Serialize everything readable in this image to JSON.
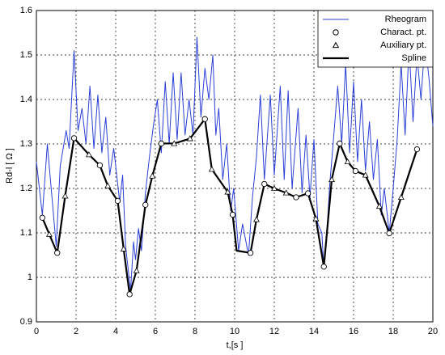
{
  "chart_data": {
    "type": "line",
    "xlabel": "t,[s ]",
    "ylabel": "Rd-l [ Ω ]",
    "xlim": [
      0,
      20
    ],
    "ylim": [
      0.9,
      1.6
    ],
    "xticks": [
      0,
      2,
      4,
      6,
      8,
      10,
      12,
      14,
      16,
      18,
      20
    ],
    "yticks": [
      0.9,
      1,
      1.1,
      1.2,
      1.3,
      1.4,
      1.5,
      1.6
    ],
    "grid": true,
    "legend": "upper right",
    "series": [
      {
        "name": "Rheogram",
        "color": "#2b3fd6",
        "marker": "line",
        "x": [
          0,
          0.3,
          0.55,
          1.0,
          1.2,
          1.5,
          1.65,
          1.9,
          2.1,
          2.3,
          2.5,
          2.7,
          2.9,
          3.1,
          3.3,
          3.5,
          3.7,
          3.9,
          4.2,
          4.35,
          4.5,
          4.75,
          4.9,
          5.0,
          5.15,
          5.3,
          5.5,
          5.7,
          5.9,
          6.1,
          6.3,
          6.5,
          6.7,
          6.9,
          7.1,
          7.3,
          7.5,
          7.7,
          7.9,
          8.1,
          8.3,
          8.5,
          8.7,
          8.9,
          9.05,
          9.2,
          9.4,
          9.6,
          9.8,
          9.95,
          10.2,
          10.4,
          10.7,
          10.9,
          11.1,
          11.3,
          11.5,
          11.8,
          12.0,
          12.3,
          12.5,
          12.7,
          12.9,
          13.2,
          13.4,
          13.6,
          13.8,
          14.0,
          14.2,
          14.4,
          14.5,
          14.65,
          14.8,
          14.95,
          15.2,
          15.4,
          15.6,
          15.8,
          16.0,
          16.2,
          16.4,
          16.6,
          16.8,
          17.0,
          17.2,
          17.4,
          17.55,
          17.8,
          18.0,
          18.2,
          18.4,
          18.6,
          18.8,
          19.0,
          19.2,
          19.4,
          19.6,
          19.8,
          20
        ],
        "values": [
          1.26,
          1.14,
          1.3,
          1.07,
          1.25,
          1.33,
          1.29,
          1.51,
          1.33,
          1.38,
          1.3,
          1.43,
          1.29,
          1.41,
          1.28,
          1.36,
          1.23,
          1.29,
          1.17,
          1.23,
          1.07,
          0.97,
          1.08,
          1.04,
          1.11,
          1.06,
          1.19,
          1.27,
          1.34,
          1.4,
          1.28,
          1.44,
          1.3,
          1.46,
          1.31,
          1.46,
          1.32,
          1.4,
          1.32,
          1.54,
          1.36,
          1.47,
          1.4,
          1.5,
          1.32,
          1.38,
          1.22,
          1.3,
          1.15,
          1.2,
          1.06,
          1.12,
          1.05,
          1.18,
          1.27,
          1.41,
          1.22,
          1.41,
          1.23,
          1.43,
          1.22,
          1.42,
          1.2,
          1.38,
          1.19,
          1.32,
          1.18,
          1.31,
          1.12,
          1.1,
          1.02,
          1.1,
          1.21,
          1.29,
          1.43,
          1.3,
          1.48,
          1.28,
          1.44,
          1.26,
          1.4,
          1.24,
          1.35,
          1.22,
          1.31,
          1.14,
          1.2,
          1.1,
          1.2,
          1.31,
          1.48,
          1.32,
          1.52,
          1.35,
          1.5,
          1.4,
          1.53,
          1.45,
          1.34
        ]
      },
      {
        "name": "Charact. pt.",
        "color": "#000000",
        "marker": "circle",
        "x": [
          0.3,
          1.05,
          1.9,
          3.2,
          4.1,
          4.7,
          5.5,
          6.3,
          8.5,
          9.9,
          10.8,
          11.5,
          13.1,
          13.7,
          14.5,
          15.3,
          16.1,
          17.8,
          19.2
        ],
        "values": [
          1.134,
          1.055,
          1.313,
          1.252,
          1.172,
          0.962,
          1.163,
          1.301,
          1.356,
          1.141,
          1.055,
          1.21,
          1.18,
          1.189,
          1.024,
          1.301,
          1.239,
          1.099,
          1.288
        ]
      },
      {
        "name": "Auxiliary pt.",
        "color": "#000000",
        "marker": "triangle",
        "x": [
          0.65,
          1.45,
          2.65,
          3.6,
          4.4,
          5.05,
          5.85,
          6.95,
          7.75,
          8.85,
          9.65,
          11.1,
          12.0,
          12.6,
          14.1,
          14.9,
          15.7,
          16.6,
          17.3,
          18.4
        ],
        "values": [
          1.097,
          1.183,
          1.276,
          1.206,
          1.064,
          1.015,
          1.228,
          1.301,
          1.312,
          1.243,
          1.192,
          1.13,
          1.2,
          1.19,
          1.132,
          1.22,
          1.26,
          1.23,
          1.16,
          1.18
        ]
      },
      {
        "name": "Spline",
        "color": "#000000",
        "marker": "thick-line",
        "x": [
          0.3,
          0.65,
          1.05,
          1.45,
          1.9,
          2.65,
          3.2,
          3.6,
          4.1,
          4.4,
          4.7,
          5.05,
          5.5,
          5.85,
          6.3,
          6.95,
          7.75,
          8.5,
          8.85,
          9.65,
          9.9,
          10.1,
          10.8,
          11.1,
          11.5,
          12.0,
          12.6,
          13.1,
          13.7,
          14.1,
          14.5,
          14.9,
          15.3,
          15.7,
          16.1,
          16.6,
          17.3,
          17.8,
          18.4,
          19.2
        ],
        "values": [
          1.134,
          1.097,
          1.055,
          1.183,
          1.313,
          1.276,
          1.252,
          1.206,
          1.172,
          1.064,
          0.962,
          1.015,
          1.163,
          1.228,
          1.301,
          1.301,
          1.312,
          1.356,
          1.243,
          1.192,
          1.141,
          1.06,
          1.055,
          1.13,
          1.21,
          1.2,
          1.19,
          1.18,
          1.189,
          1.132,
          1.024,
          1.22,
          1.301,
          1.26,
          1.239,
          1.23,
          1.16,
          1.099,
          1.18,
          1.288
        ]
      }
    ]
  }
}
